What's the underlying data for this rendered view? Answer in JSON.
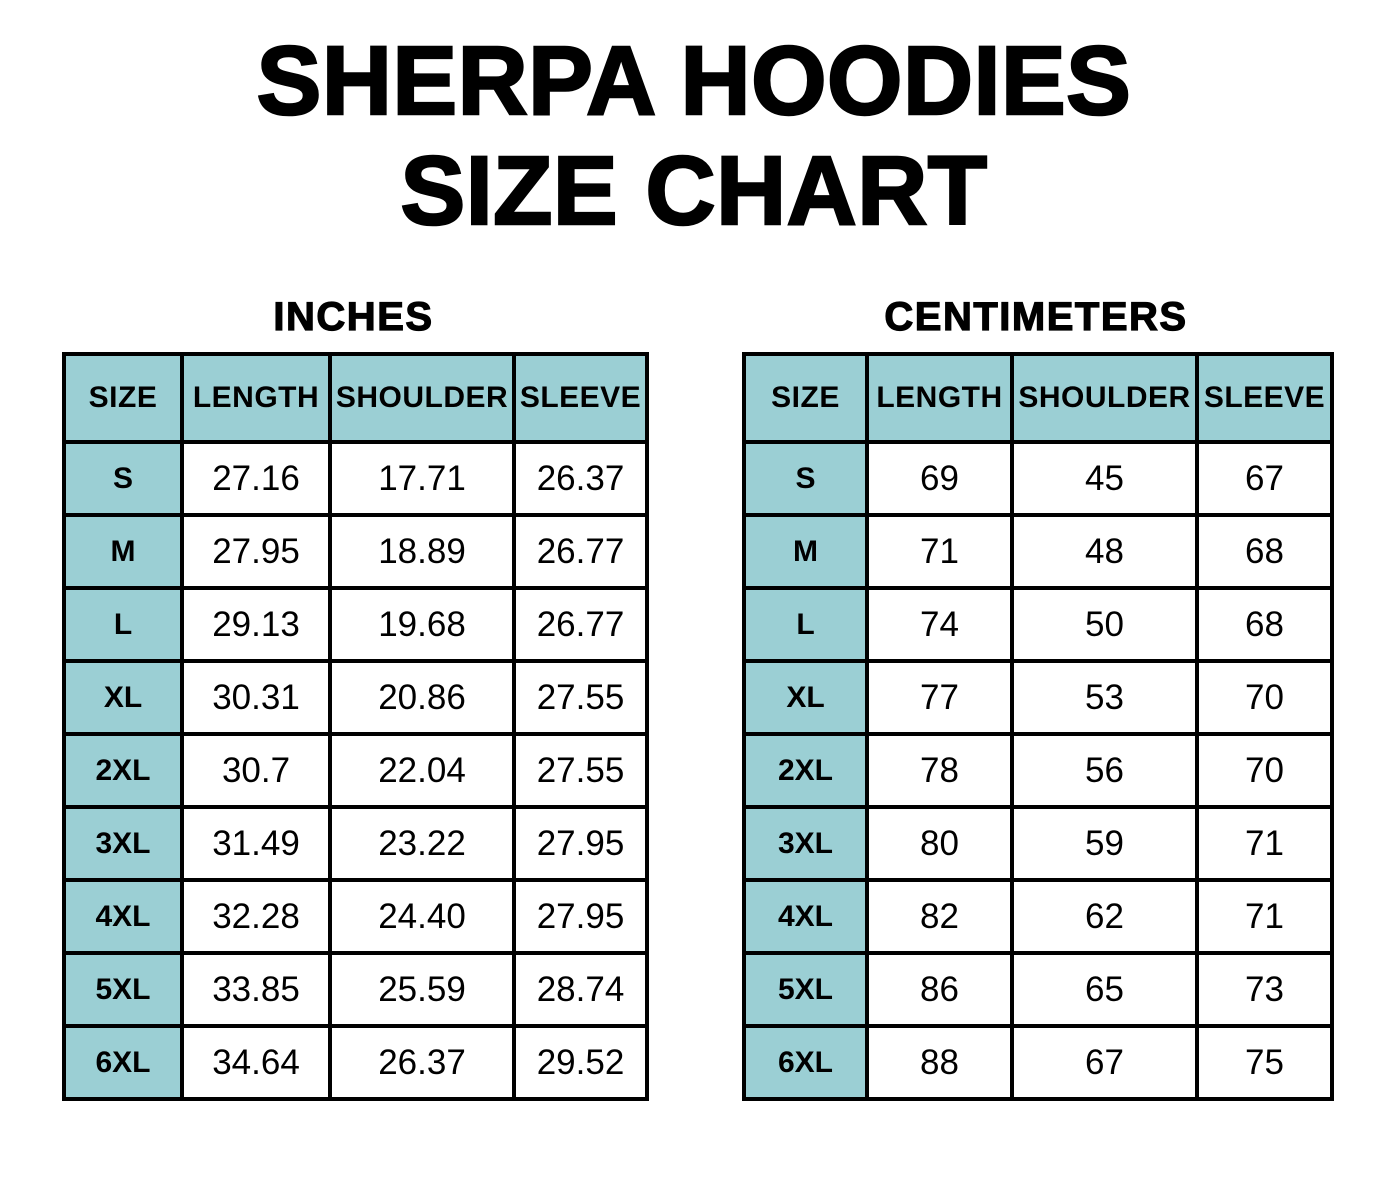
{
  "title": {
    "line1": "SHERPA HOODIES",
    "line2": "SIZE CHART"
  },
  "colors": {
    "header_fill": "#9bcfd4",
    "border": "#000000",
    "background": "#ffffff",
    "text": "#000000"
  },
  "chart_data": [
    {
      "type": "table",
      "title": "INCHES",
      "columns": [
        "SIZE",
        "LENGTH",
        "SHOULDER",
        "SLEEVE"
      ],
      "rows": [
        [
          "S",
          "27.16",
          "17.71",
          "26.37"
        ],
        [
          "M",
          "27.95",
          "18.89",
          "26.77"
        ],
        [
          "L",
          "29.13",
          "19.68",
          "26.77"
        ],
        [
          "XL",
          "30.31",
          "20.86",
          "27.55"
        ],
        [
          "2XL",
          "30.7",
          "22.04",
          "27.55"
        ],
        [
          "3XL",
          "31.49",
          "23.22",
          "27.95"
        ],
        [
          "4XL",
          "32.28",
          "24.40",
          "27.95"
        ],
        [
          "5XL",
          "33.85",
          "25.59",
          "28.74"
        ],
        [
          "6XL",
          "34.64",
          "26.37",
          "29.52"
        ]
      ]
    },
    {
      "type": "table",
      "title": "CENTIMETERS",
      "columns": [
        "SIZE",
        "LENGTH",
        "SHOULDER",
        "SLEEVE"
      ],
      "rows": [
        [
          "S",
          "69",
          "45",
          "67"
        ],
        [
          "M",
          "71",
          "48",
          "68"
        ],
        [
          "L",
          "74",
          "50",
          "68"
        ],
        [
          "XL",
          "77",
          "53",
          "70"
        ],
        [
          "2XL",
          "78",
          "56",
          "70"
        ],
        [
          "3XL",
          "80",
          "59",
          "71"
        ],
        [
          "4XL",
          "82",
          "62",
          "71"
        ],
        [
          "5XL",
          "86",
          "65",
          "73"
        ],
        [
          "6XL",
          "88",
          "67",
          "75"
        ]
      ]
    }
  ]
}
